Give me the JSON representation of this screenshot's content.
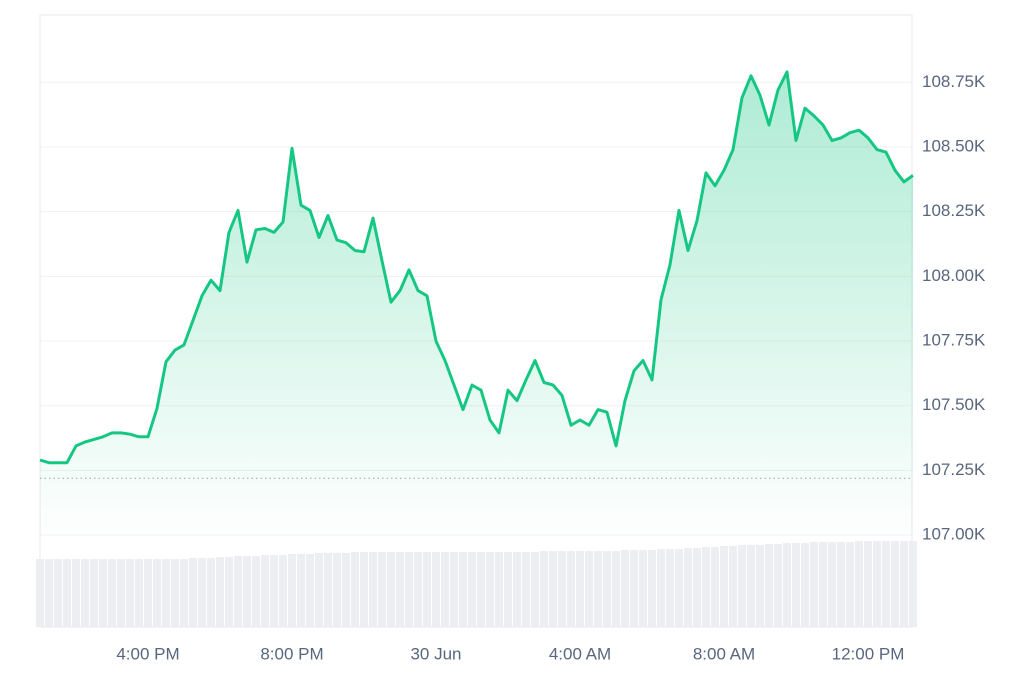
{
  "chart_data": {
    "type": "line",
    "categories": [
      null,
      null,
      null,
      null,
      null,
      null,
      null,
      null,
      null,
      null,
      null,
      null,
      "4:00 PM",
      null,
      null,
      null,
      null,
      null,
      null,
      null,
      null,
      null,
      null,
      null,
      null,
      null,
      null,
      null,
      "8:00 PM",
      null,
      null,
      null,
      null,
      null,
      null,
      null,
      null,
      null,
      null,
      null,
      null,
      null,
      null,
      null,
      "30 Jun",
      null,
      null,
      null,
      null,
      null,
      null,
      null,
      null,
      null,
      null,
      null,
      null,
      null,
      null,
      null,
      "4:00 AM",
      null,
      null,
      null,
      null,
      null,
      null,
      null,
      null,
      null,
      null,
      null,
      null,
      null,
      null,
      null,
      "8:00 AM",
      null,
      null,
      null,
      null,
      null,
      null,
      null,
      null,
      null,
      null,
      null,
      null,
      null,
      null,
      null,
      "12:00 PM",
      null,
      null,
      null,
      null,
      null
    ],
    "values": [
      107290,
      107280,
      107280,
      107280,
      107345,
      107360,
      107370,
      107380,
      107395,
      107395,
      107390,
      107380,
      107380,
      107490,
      107670,
      107715,
      107735,
      107830,
      107925,
      107985,
      107945,
      108170,
      108255,
      108055,
      108180,
      108185,
      108170,
      108210,
      108495,
      108275,
      108255,
      108150,
      108235,
      108140,
      108130,
      108100,
      108095,
      108225,
      108060,
      107900,
      107945,
      108025,
      107945,
      107925,
      107750,
      107675,
      107580,
      107485,
      107580,
      107560,
      107445,
      107395,
      107560,
      107520,
      107600,
      107675,
      107590,
      107580,
      107540,
      107425,
      107445,
      107425,
      107485,
      107475,
      107345,
      107520,
      107635,
      107675,
      107600,
      107910,
      108045,
      108255,
      108100,
      108215,
      108400,
      108350,
      108410,
      108490,
      108690,
      108775,
      108700,
      108585,
      108720,
      108790,
      108525,
      108650,
      108620,
      108585,
      108525,
      108535,
      108555,
      108565,
      108535,
      108490,
      108480,
      108410,
      108365,
      108390
    ],
    "color": "#16c784",
    "ylim": [
      106645,
      109010
    ],
    "yticks": [
      {
        "value": 107000,
        "label": "107.00K"
      },
      {
        "value": 107250,
        "label": "107.25K"
      },
      {
        "value": 107500,
        "label": "107.50K"
      },
      {
        "value": 107750,
        "label": "107.75K"
      },
      {
        "value": 108000,
        "label": "108.00K"
      },
      {
        "value": 108250,
        "label": "108.25K"
      },
      {
        "value": 108500,
        "label": "108.50K"
      },
      {
        "value": 108750,
        "label": "108.75K"
      }
    ],
    "grid": true,
    "reference_line": 107220,
    "volume": [
      68,
      68,
      68,
      68,
      68,
      68,
      68,
      68,
      68,
      68,
      68,
      68,
      68,
      68,
      68,
      68,
      68,
      69,
      69,
      69,
      70,
      70,
      71,
      71,
      71,
      72,
      72,
      72,
      73,
      73,
      73,
      74,
      74,
      74,
      74,
      75,
      75,
      75,
      75,
      75,
      75,
      75,
      75,
      75,
      75,
      75,
      75,
      75,
      75,
      75,
      75,
      75,
      75,
      75,
      75,
      75,
      76,
      76,
      76,
      76,
      76,
      76,
      76,
      76,
      76,
      77,
      77,
      77,
      77,
      78,
      78,
      78,
      79,
      79,
      80,
      80,
      81,
      81,
      82,
      82,
      82,
      83,
      83,
      84,
      84,
      84,
      85,
      85,
      85,
      85,
      85,
      86,
      86,
      86,
      86,
      86,
      86,
      86
    ],
    "volume_lim": [
      0,
      100
    ]
  }
}
